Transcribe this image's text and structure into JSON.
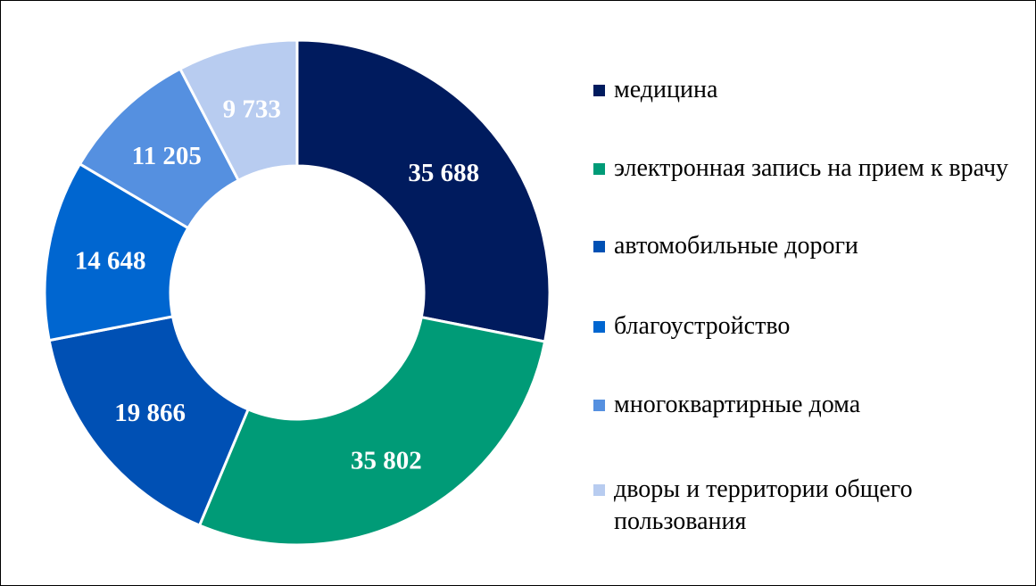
{
  "chart_data": {
    "type": "pie",
    "donut": true,
    "categories": [
      "медицина",
      "электронная запись на прием к врачу",
      "автомобильные дороги",
      "благоустройство",
      "многоквартирные дома",
      "дворы и территории общего пользования"
    ],
    "values": [
      35688,
      35802,
      19866,
      14648,
      11205,
      9733
    ],
    "data_labels": [
      "35 688",
      "35 802",
      "19 866",
      "14 648",
      "11 205",
      "9 733"
    ],
    "colors": [
      "#001B5E",
      "#009B77",
      "#0050B4",
      "#0066D0",
      "#5590E0",
      "#B8CCF0"
    ],
    "legend_position": "right",
    "start_angle": "top, clockwise"
  }
}
